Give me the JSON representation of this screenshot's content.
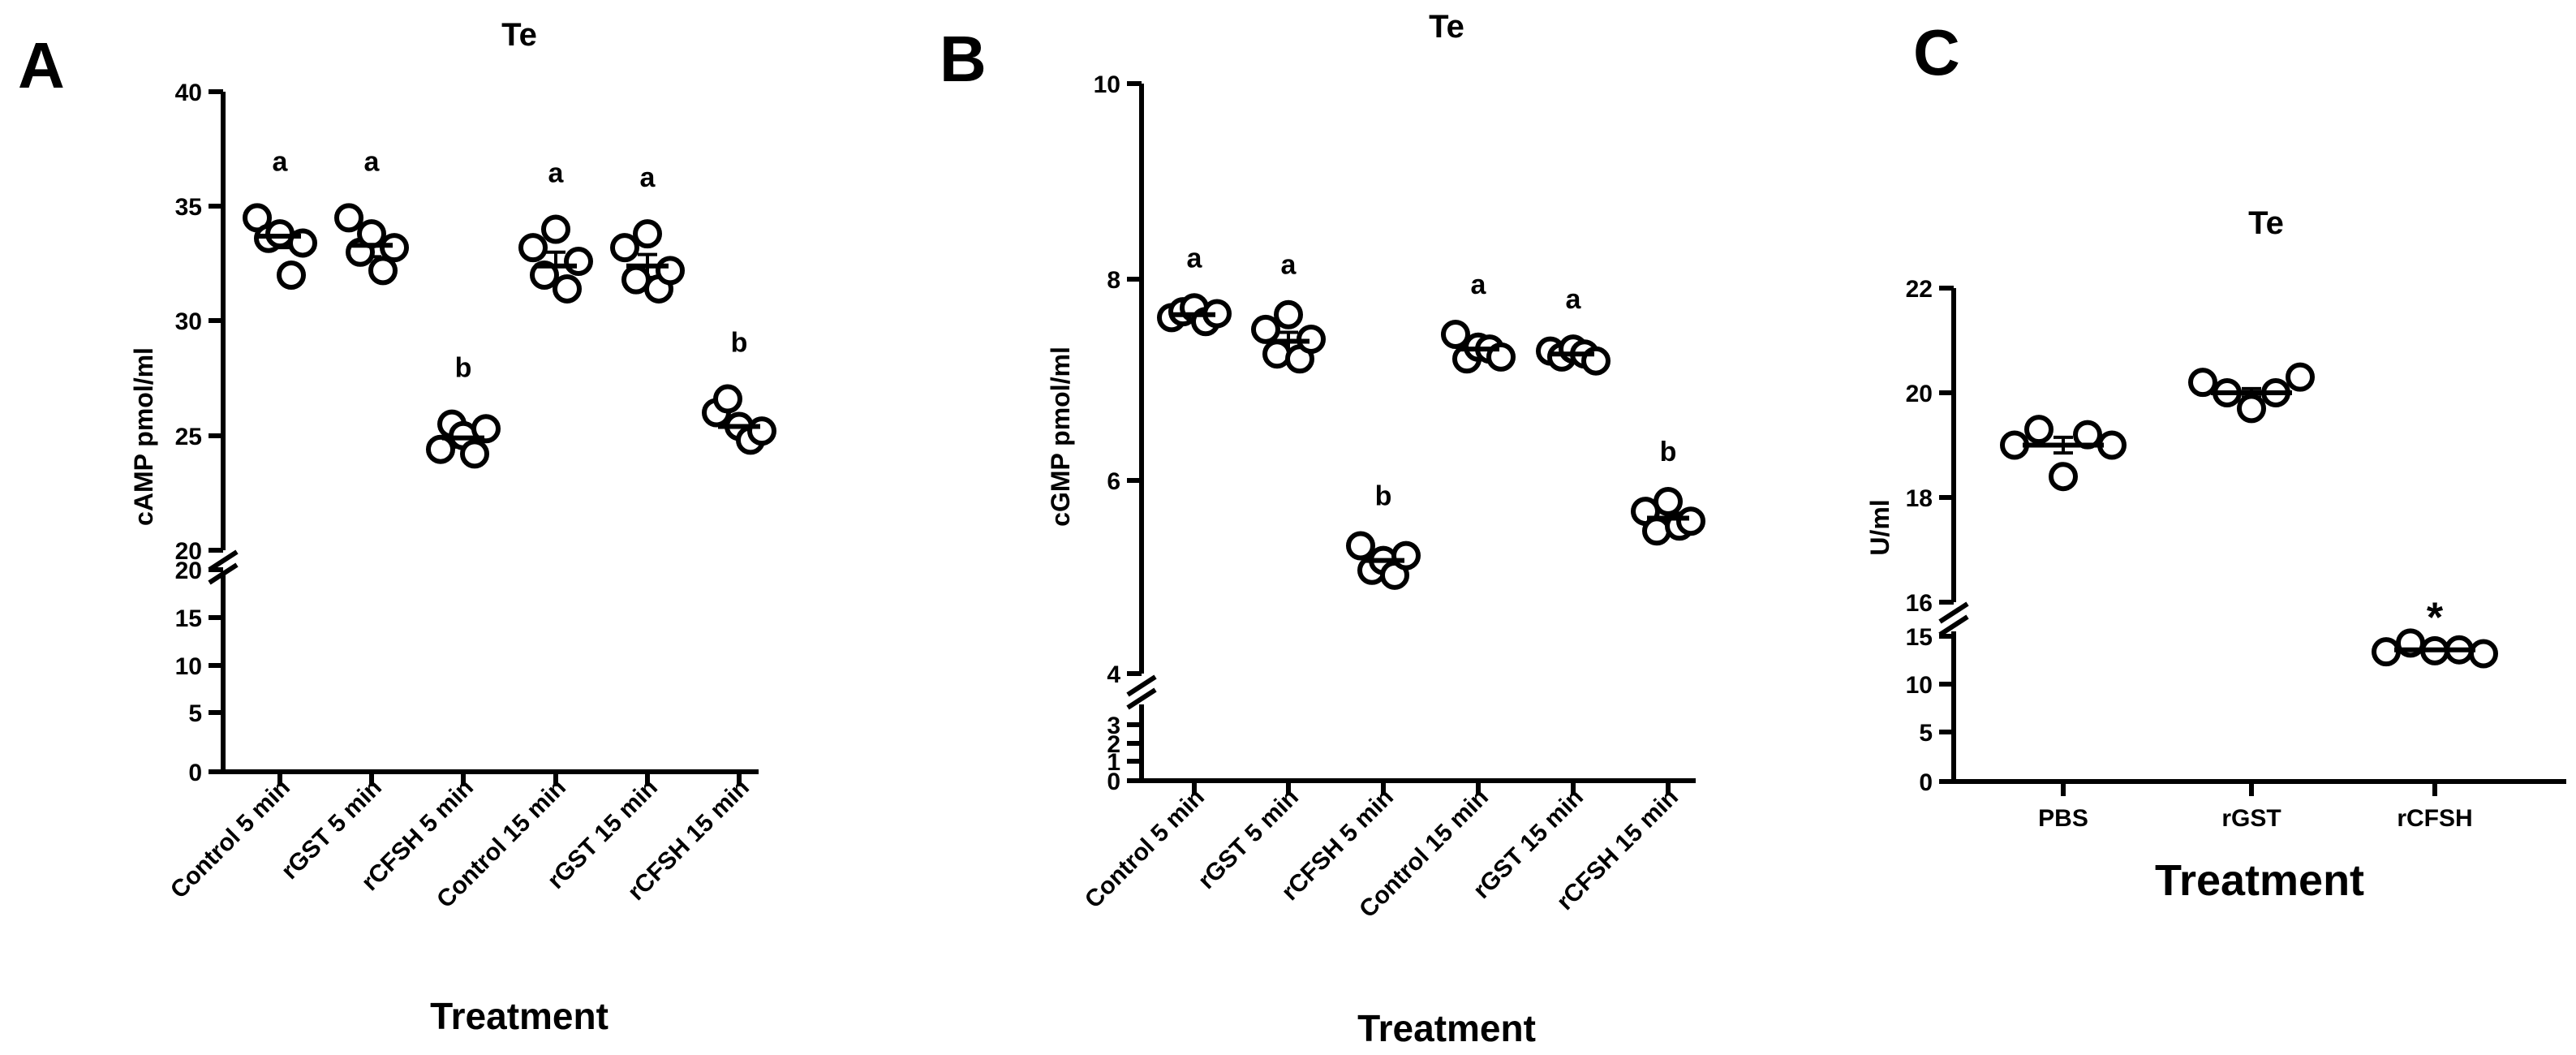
{
  "chart_data": [
    {
      "type": "scatter",
      "panel": "A",
      "title": "Te",
      "xlabel": "Treatment",
      "ylabel": "cAMP pmol/ml",
      "categories": [
        "Control 5 min",
        "rGST 5 min",
        "rCFSH 5 min",
        "Control 15 min",
        "rGST 15 min",
        "rCFSH 15 min"
      ],
      "axis_break": {
        "lower": [
          0,
          20
        ],
        "upper": [
          20,
          40
        ]
      },
      "lower_ticks": [
        "0",
        "5",
        "10",
        "15",
        "20"
      ],
      "upper_ticks": [
        "20",
        "25",
        "30",
        "35",
        "40"
      ],
      "means": [
        33.7,
        33.3,
        24.9,
        32.4,
        32.4,
        25.4
      ],
      "sem": [
        0.5,
        0.5,
        0.4,
        0.6,
        0.5,
        0.4
      ],
      "points": [
        [
          34.5,
          33.6,
          33.8,
          32.0,
          33.4
        ],
        [
          34.5,
          33.0,
          33.8,
          32.2,
          33.2
        ],
        [
          24.4,
          25.5,
          25.0,
          24.2,
          25.3
        ],
        [
          33.2,
          32.0,
          34.0,
          31.4,
          32.6
        ],
        [
          33.2,
          31.8,
          33.8,
          31.4,
          32.2
        ],
        [
          26.0,
          26.6,
          25.4,
          24.8,
          25.2
        ]
      ],
      "sig_labels": [
        "a",
        "a",
        "b",
        "a",
        "a",
        "b"
      ]
    },
    {
      "type": "scatter",
      "panel": "B",
      "title": "Te",
      "xlabel": "Treatment",
      "ylabel": "cGMP pmol/ml",
      "categories": [
        "Control 5 min",
        "rGST 5 min",
        "rCFSH 5 min",
        "Control 15 min",
        "rGST 15 min",
        "rCFSH 15 min"
      ],
      "axis_break": {
        "lower": [
          0,
          3
        ],
        "upper": [
          4,
          10
        ]
      },
      "lower_ticks": [
        "0",
        "1",
        "2",
        "3"
      ],
      "upper_ticks": [
        "4",
        "6",
        "8",
        "10"
      ],
      "means": [
        7.65,
        7.38,
        5.15,
        7.3,
        7.25,
        5.58
      ],
      "sem": [
        0.03,
        0.09,
        0.06,
        0.05,
        0.03,
        0.07
      ],
      "points": [
        [
          7.62,
          7.68,
          7.72,
          7.58,
          7.66
        ],
        [
          7.5,
          7.25,
          7.65,
          7.2,
          7.4
        ],
        [
          5.3,
          5.05,
          5.15,
          5.0,
          5.2
        ],
        [
          7.45,
          7.2,
          7.32,
          7.3,
          7.22
        ],
        [
          7.28,
          7.22,
          7.3,
          7.25,
          7.18
        ],
        [
          5.65,
          5.45,
          5.75,
          5.5,
          5.55
        ]
      ],
      "sig_labels": [
        "a",
        "a",
        "b",
        "a",
        "a",
        "b"
      ]
    },
    {
      "type": "scatter",
      "panel": "C",
      "title": "Te",
      "xlabel": "Treatment",
      "ylabel": "U/ml",
      "categories": [
        "PBS",
        "rGST",
        "rCFSH"
      ],
      "axis_break": {
        "lower": [
          0,
          15
        ],
        "upper": [
          16,
          22
        ]
      },
      "lower_ticks": [
        "0",
        "5",
        "10",
        "15"
      ],
      "upper_ticks": [
        "16",
        "18",
        "20",
        "22"
      ],
      "means": [
        19.0,
        20.0,
        13.6
      ],
      "sem": [
        0.15,
        0.08,
        0.2
      ],
      "points": [
        [
          19.0,
          19.3,
          18.4,
          19.2,
          19.0
        ],
        [
          20.2,
          20.0,
          19.7,
          20.0,
          20.3
        ],
        [
          13.4,
          14.3,
          13.5,
          13.6,
          13.2
        ]
      ],
      "sig_labels": [
        "",
        "",
        "*"
      ]
    }
  ]
}
